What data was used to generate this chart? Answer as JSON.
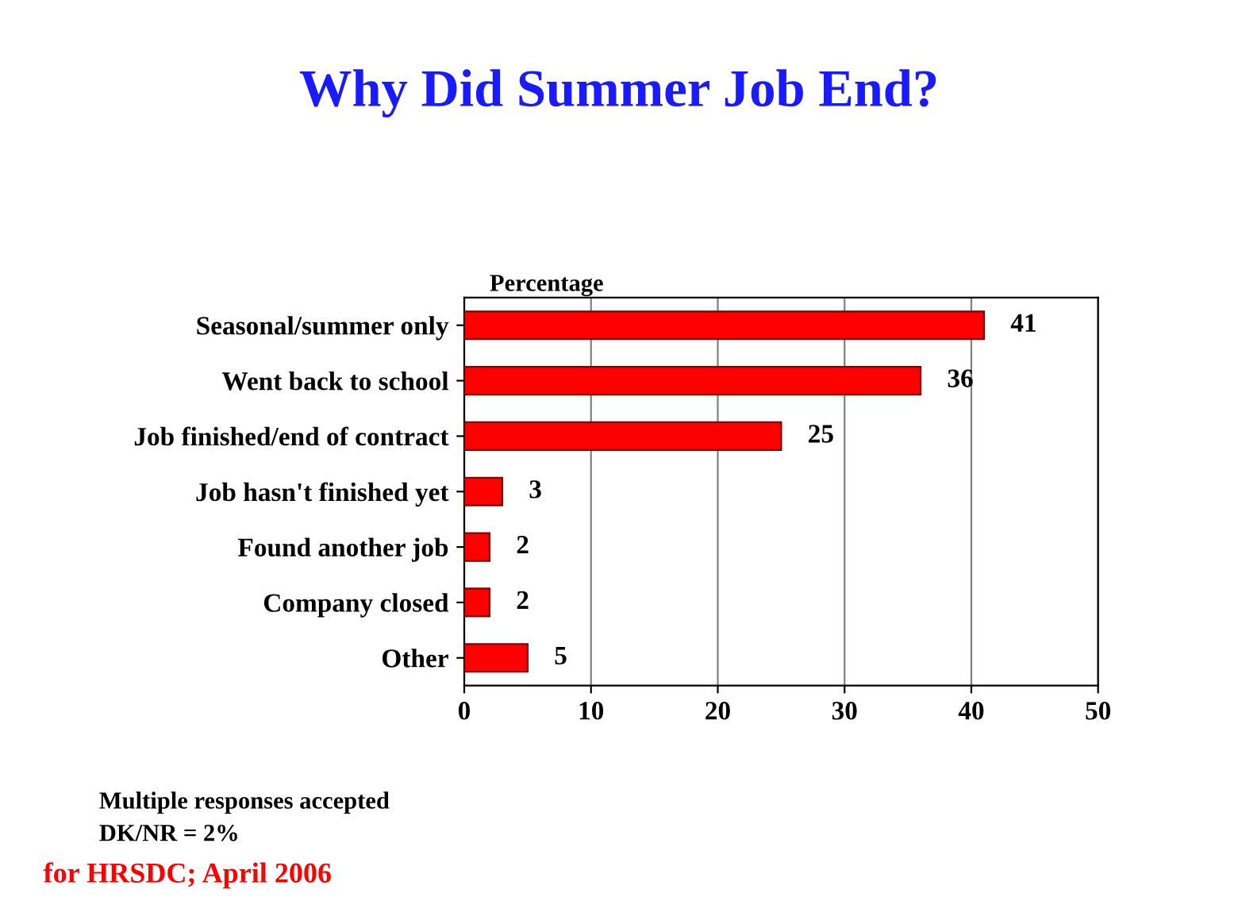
{
  "chart_data": {
    "type": "bar",
    "orientation": "horizontal",
    "title": "Why Did Summer Job End?",
    "xlabel": "Percentage",
    "categories": [
      "Seasonal/summer only",
      "Went back to school",
      "Job finished/end of contract",
      "Job hasn't finished yet",
      "Found another job",
      "Company closed",
      "Other"
    ],
    "values": [
      41,
      36,
      25,
      3,
      2,
      2,
      5
    ],
    "color": "#ff0000",
    "data_labels": true,
    "xlim": [
      0,
      50
    ],
    "xticks": [
      0,
      10,
      20,
      30,
      40,
      50
    ],
    "grid": "x",
    "annotations": [
      "Multiple responses accepted",
      "DK/NR = 2%",
      "for HRSDC; April 2006"
    ]
  }
}
